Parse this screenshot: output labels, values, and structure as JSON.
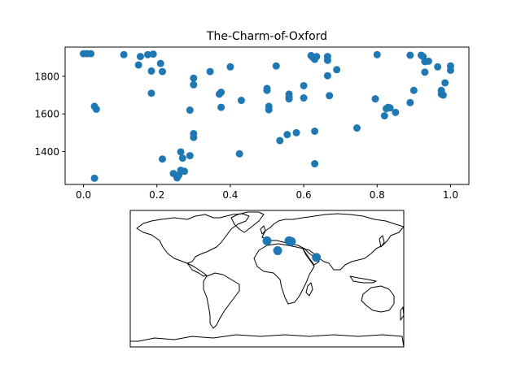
{
  "chart_data": [
    {
      "type": "scatter",
      "title": "The-Charm-of-Oxford",
      "xlabel": "",
      "ylabel": "",
      "xlim": [
        -0.05,
        1.05
      ],
      "ylim": [
        1225,
        1955
      ],
      "x_ticks": [
        "0.0",
        "0.2",
        "0.4",
        "0.6",
        "0.8",
        "1.0"
      ],
      "y_ticks": [
        "1400",
        "1600",
        "1800"
      ],
      "marker_color": "#1f77b4",
      "grid": false,
      "points": [
        {
          "x": 0.0,
          "y": 1920
        },
        {
          "x": 0.01,
          "y": 1920
        },
        {
          "x": 0.02,
          "y": 1920
        },
        {
          "x": 0.03,
          "y": 1640
        },
        {
          "x": 0.035,
          "y": 1625
        },
        {
          "x": 0.03,
          "y": 1258
        },
        {
          "x": 0.11,
          "y": 1915
        },
        {
          "x": 0.15,
          "y": 1860
        },
        {
          "x": 0.155,
          "y": 1905
        },
        {
          "x": 0.175,
          "y": 1915
        },
        {
          "x": 0.19,
          "y": 1918
        },
        {
          "x": 0.185,
          "y": 1828
        },
        {
          "x": 0.185,
          "y": 1710
        },
        {
          "x": 0.21,
          "y": 1868
        },
        {
          "x": 0.215,
          "y": 1825
        },
        {
          "x": 0.215,
          "y": 1360
        },
        {
          "x": 0.245,
          "y": 1283
        },
        {
          "x": 0.255,
          "y": 1260
        },
        {
          "x": 0.26,
          "y": 1275
        },
        {
          "x": 0.265,
          "y": 1300
        },
        {
          "x": 0.265,
          "y": 1398
        },
        {
          "x": 0.27,
          "y": 1365
        },
        {
          "x": 0.275,
          "y": 1295
        },
        {
          "x": 0.29,
          "y": 1378
        },
        {
          "x": 0.29,
          "y": 1620
        },
        {
          "x": 0.3,
          "y": 1790
        },
        {
          "x": 0.3,
          "y": 1755
        },
        {
          "x": 0.3,
          "y": 1495
        },
        {
          "x": 0.3,
          "y": 1475
        },
        {
          "x": 0.345,
          "y": 1825
        },
        {
          "x": 0.37,
          "y": 1705
        },
        {
          "x": 0.375,
          "y": 1715
        },
        {
          "x": 0.375,
          "y": 1635
        },
        {
          "x": 0.4,
          "y": 1850
        },
        {
          "x": 0.425,
          "y": 1388
        },
        {
          "x": 0.43,
          "y": 1672
        },
        {
          "x": 0.5,
          "y": 1735
        },
        {
          "x": 0.5,
          "y": 1725
        },
        {
          "x": 0.505,
          "y": 1640
        },
        {
          "x": 0.505,
          "y": 1622
        },
        {
          "x": 0.525,
          "y": 1855
        },
        {
          "x": 0.535,
          "y": 1458
        },
        {
          "x": 0.555,
          "y": 1490
        },
        {
          "x": 0.56,
          "y": 1705
        },
        {
          "x": 0.56,
          "y": 1690
        },
        {
          "x": 0.56,
          "y": 1680
        },
        {
          "x": 0.58,
          "y": 1500
        },
        {
          "x": 0.6,
          "y": 1750
        },
        {
          "x": 0.6,
          "y": 1685
        },
        {
          "x": 0.62,
          "y": 1910
        },
        {
          "x": 0.625,
          "y": 1900
        },
        {
          "x": 0.63,
          "y": 1890
        },
        {
          "x": 0.635,
          "y": 1905
        },
        {
          "x": 0.63,
          "y": 1508
        },
        {
          "x": 0.63,
          "y": 1335
        },
        {
          "x": 0.665,
          "y": 1905
        },
        {
          "x": 0.665,
          "y": 1885
        },
        {
          "x": 0.665,
          "y": 1803
        },
        {
          "x": 0.67,
          "y": 1697
        },
        {
          "x": 0.69,
          "y": 1835
        },
        {
          "x": 0.745,
          "y": 1525
        },
        {
          "x": 0.795,
          "y": 1680
        },
        {
          "x": 0.8,
          "y": 1915
        },
        {
          "x": 0.82,
          "y": 1590
        },
        {
          "x": 0.825,
          "y": 1628
        },
        {
          "x": 0.83,
          "y": 1635
        },
        {
          "x": 0.835,
          "y": 1632
        },
        {
          "x": 0.85,
          "y": 1608
        },
        {
          "x": 0.89,
          "y": 1912
        },
        {
          "x": 0.89,
          "y": 1660
        },
        {
          "x": 0.9,
          "y": 1725
        },
        {
          "x": 0.92,
          "y": 1912
        },
        {
          "x": 0.925,
          "y": 1905
        },
        {
          "x": 0.93,
          "y": 1878
        },
        {
          "x": 0.93,
          "y": 1822
        },
        {
          "x": 0.94,
          "y": 1880
        },
        {
          "x": 0.965,
          "y": 1850
        },
        {
          "x": 0.975,
          "y": 1725
        },
        {
          "x": 0.975,
          "y": 1705
        },
        {
          "x": 0.98,
          "y": 1700
        },
        {
          "x": 0.985,
          "y": 1765
        },
        {
          "x": 1.0,
          "y": 1855
        },
        {
          "x": 1.0,
          "y": 1832
        }
      ]
    },
    {
      "type": "map",
      "title": "",
      "projection": "equirectangular",
      "extent_lon": [
        -180,
        180
      ],
      "extent_lat": [
        -90,
        90
      ],
      "marker_color": "#1f77b4",
      "points": [
        {
          "lon": 0,
          "lat": 50
        },
        {
          "lon": 14,
          "lat": 37
        },
        {
          "lon": 29,
          "lat": 50
        },
        {
          "lon": 32,
          "lat": 49
        },
        {
          "lon": 65,
          "lat": 28
        }
      ]
    }
  ]
}
